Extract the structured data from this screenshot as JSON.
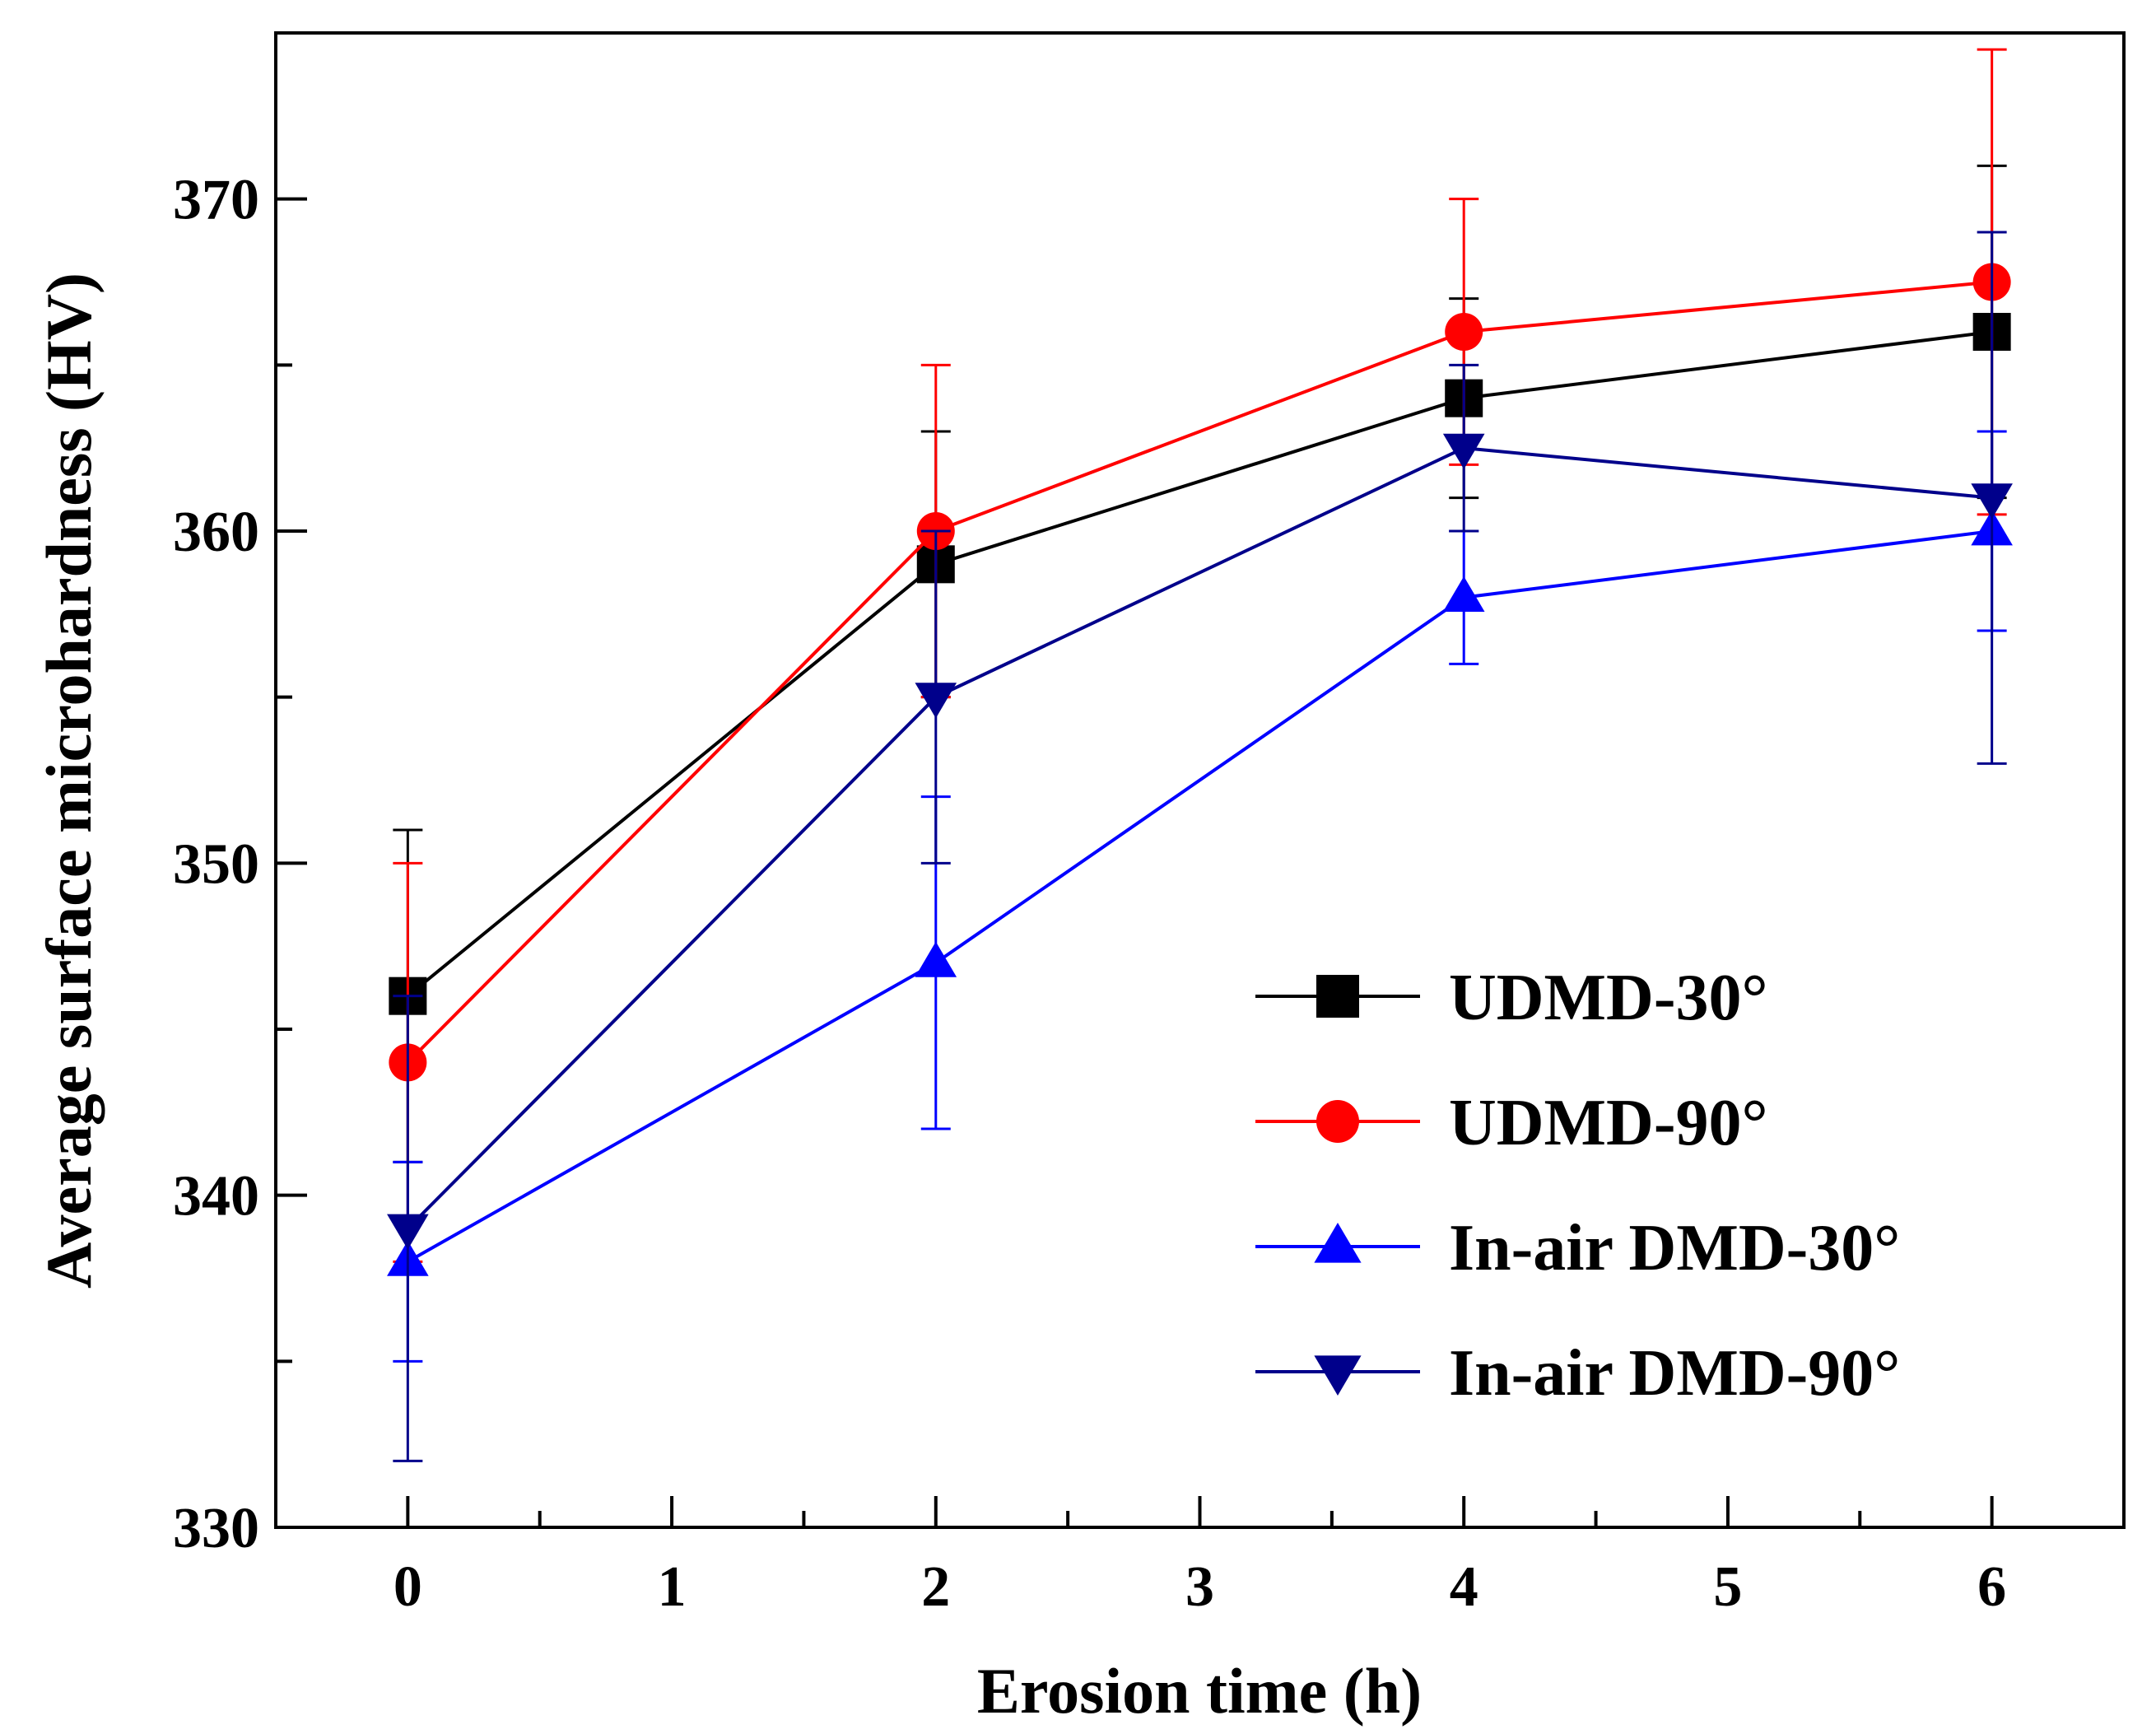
{
  "chart_data": {
    "type": "line",
    "title": "",
    "xlabel": "Erosion time (h)",
    "ylabel": "Average surface microhardness (HV)",
    "xlim": [
      -0.5,
      6.5
    ],
    "ylim": [
      330,
      375
    ],
    "xticks": [
      0,
      1,
      2,
      3,
      4,
      5,
      6
    ],
    "yticks": [
      330,
      340,
      350,
      360,
      370
    ],
    "x_tick_labels": [
      "0",
      "1",
      "2",
      "3",
      "4",
      "5",
      "6"
    ],
    "y_tick_labels": [
      "330",
      "340",
      "350",
      "360",
      "370"
    ],
    "grid": false,
    "legend_position": "lower-right",
    "series": [
      {
        "name": "UDMD-30°",
        "color": "#000000",
        "marker": "square",
        "x": [
          0,
          2,
          4,
          6
        ],
        "y": [
          346,
          359,
          364,
          366
        ],
        "err": [
          5,
          4,
          3,
          5
        ]
      },
      {
        "name": "UDMD-90°",
        "color": "#ff0000",
        "marker": "circle",
        "x": [
          0,
          2,
          4,
          6
        ],
        "y": [
          344,
          360,
          366,
          367.5
        ],
        "err": [
          6,
          5,
          4,
          7
        ]
      },
      {
        "name": "In-air DMD-30°",
        "color": "#0000ff",
        "marker": "triangle-up",
        "x": [
          0,
          2,
          4,
          6
        ],
        "y": [
          338,
          347,
          358,
          360
        ],
        "err": [
          3,
          5,
          2,
          3
        ]
      },
      {
        "name": "In-air DMD-90°",
        "color": "#00008b",
        "marker": "triangle-down",
        "x": [
          0,
          2,
          4,
          6
        ],
        "y": [
          339,
          355,
          362.5,
          361
        ],
        "err": [
          7,
          5,
          2.5,
          8
        ]
      }
    ]
  }
}
